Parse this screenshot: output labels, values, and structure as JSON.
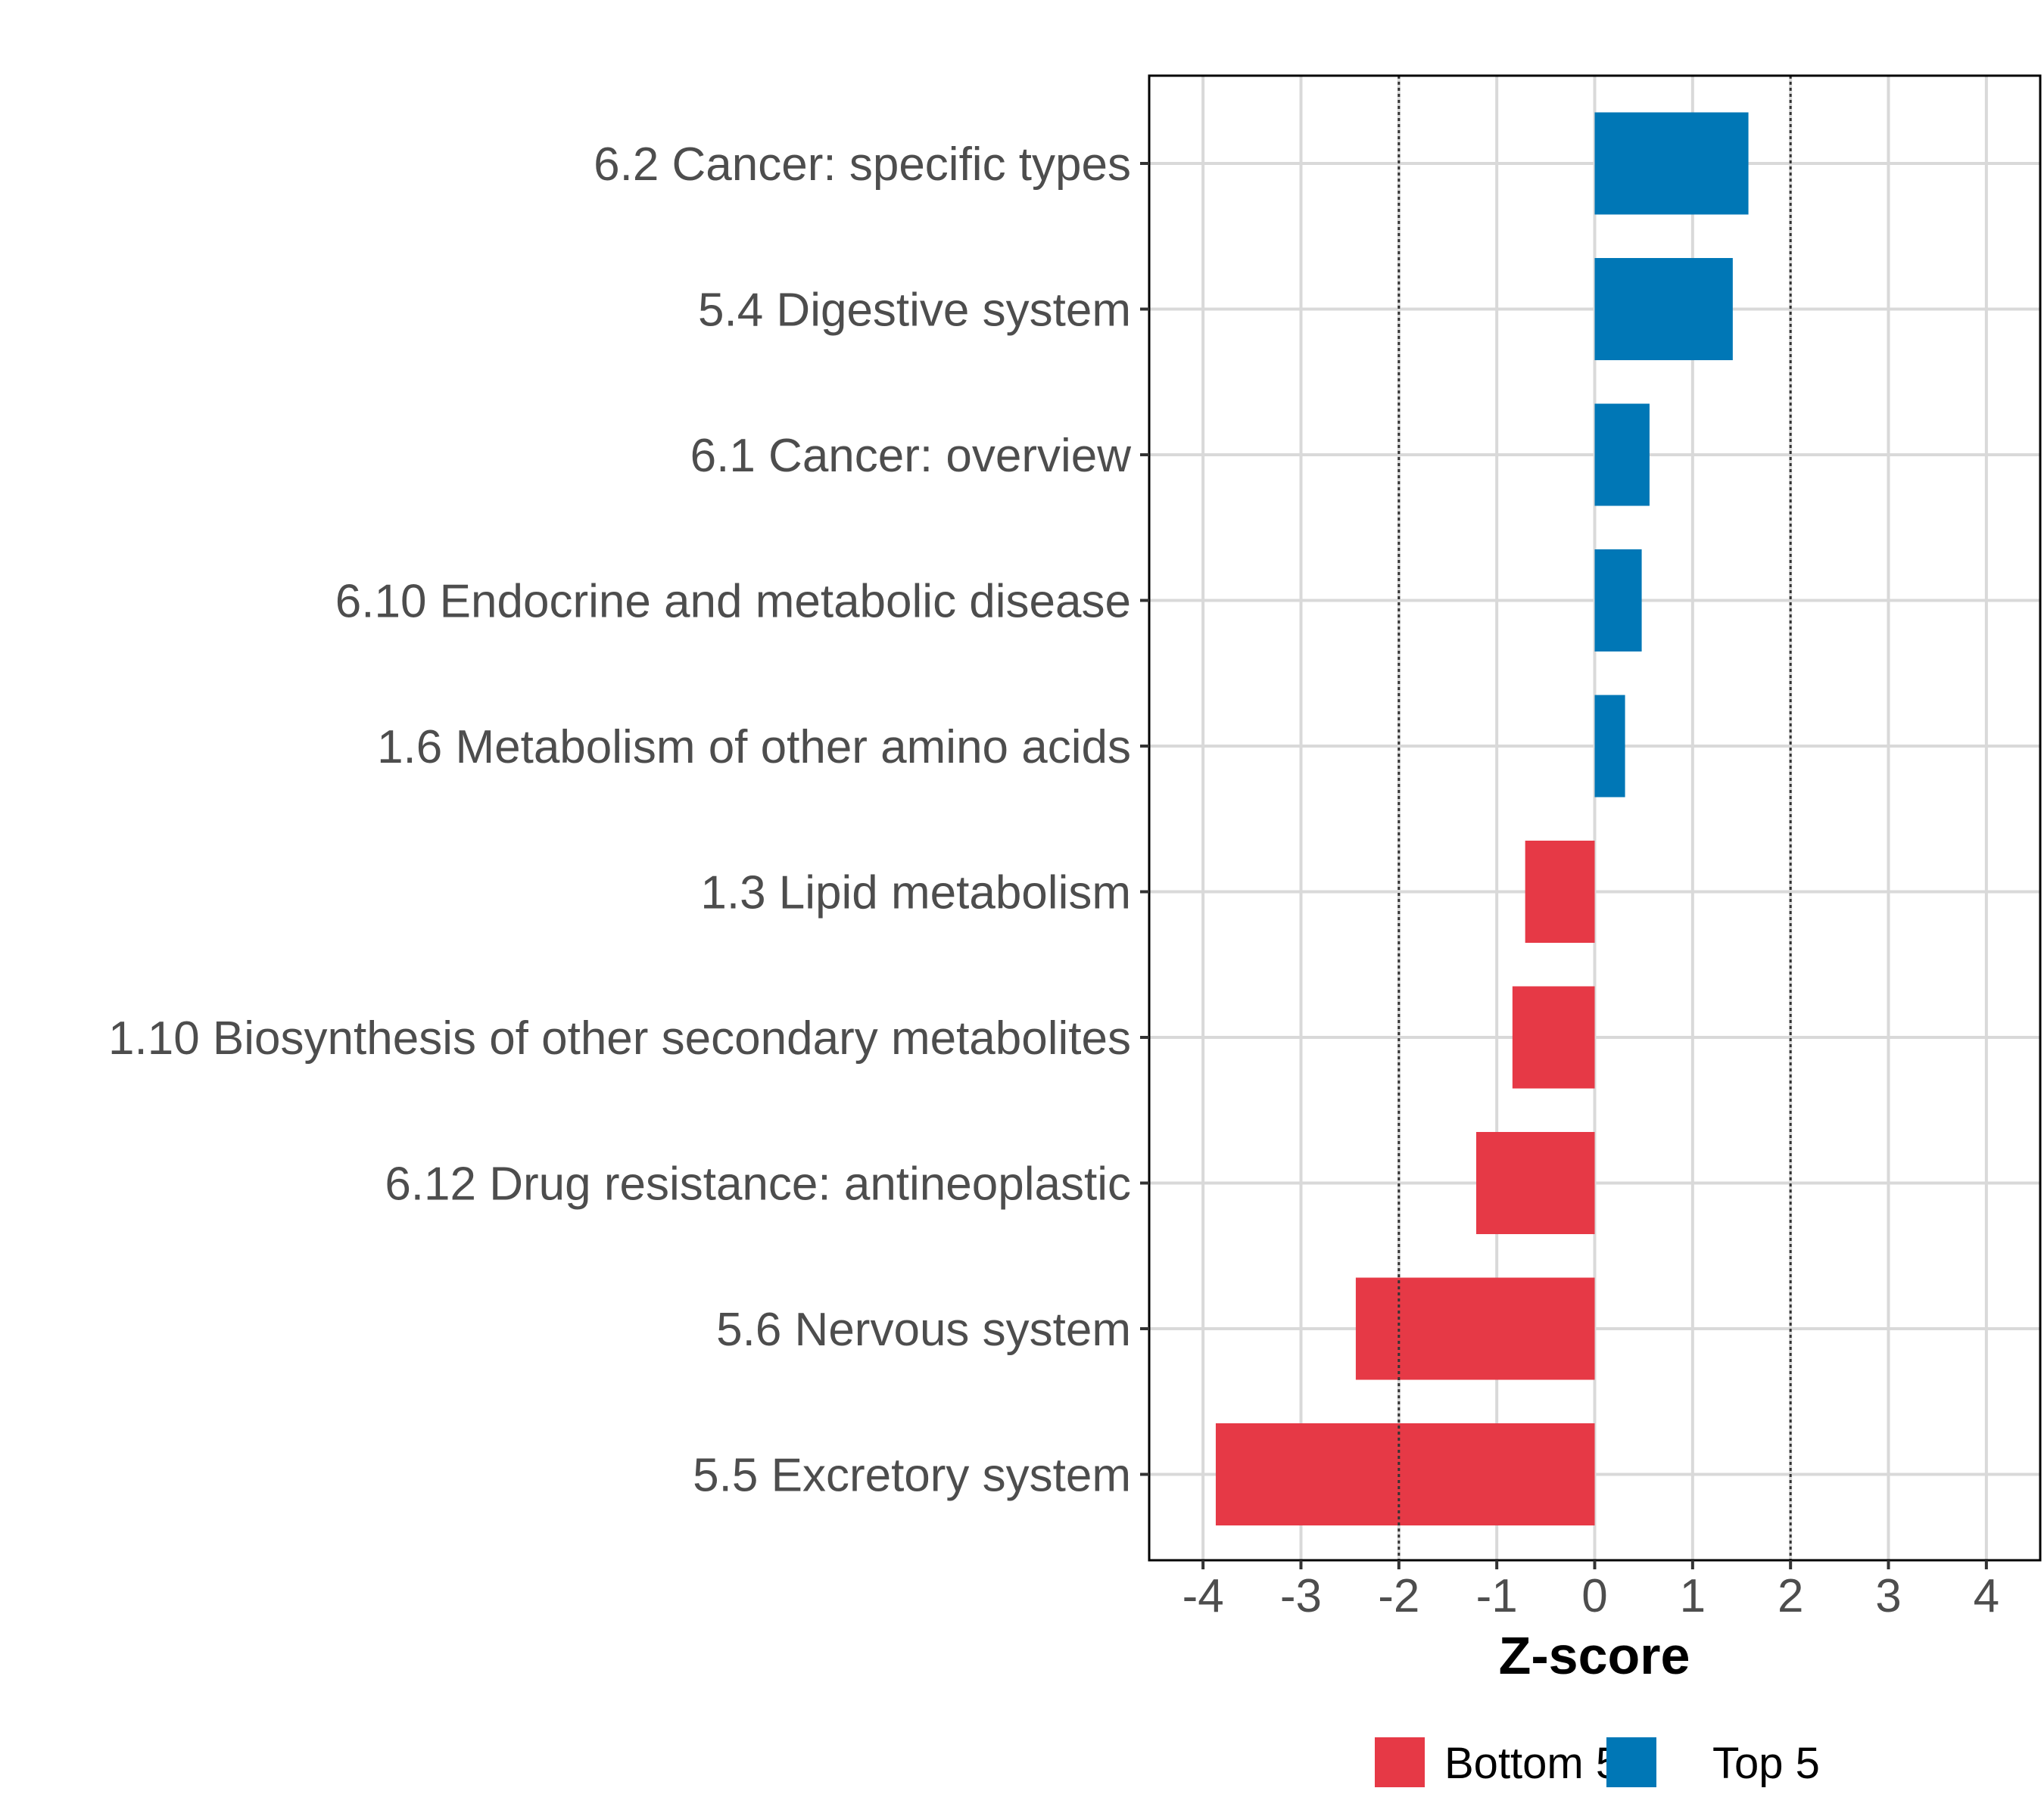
{
  "chart_data": {
    "type": "bar",
    "orientation": "horizontal",
    "title": "",
    "xlabel": "Z-score",
    "ylabel": "",
    "xlim": [
      -4.55,
      4.55
    ],
    "xticks": [
      -4,
      -3,
      -2,
      -1,
      0,
      1,
      2,
      3,
      4
    ],
    "tick_labels": [
      "-4",
      "-3",
      "-2",
      "-1",
      "0",
      "1",
      "2",
      "3",
      "4"
    ],
    "reference_lines": [
      -2,
      2
    ],
    "grid": true,
    "categories": [
      "6.2 Cancer: specific types",
      "5.4 Digestive system",
      "6.1 Cancer: overview",
      "6.10 Endocrine and metabolic disease",
      "1.6 Metabolism of other amino acids",
      "1.3 Lipid metabolism",
      "1.10 Biosynthesis of other secondary metabolites",
      "6.12 Drug resistance: antineoplastic",
      "5.6 Nervous system",
      "5.5 Excretory system"
    ],
    "values": [
      1.57,
      1.41,
      0.56,
      0.48,
      0.31,
      -0.71,
      -0.84,
      -1.21,
      -2.44,
      -3.87
    ],
    "groups": [
      "Top 5",
      "Top 5",
      "Top 5",
      "Top 5",
      "Top 5",
      "Bottom 5",
      "Bottom 5",
      "Bottom 5",
      "Bottom 5",
      "Bottom 5"
    ],
    "legend": {
      "position": "bottom",
      "entries": [
        {
          "label": "Bottom 5",
          "color": "#e63946"
        },
        {
          "label": "Top 5",
          "color": "#0077b6"
        }
      ]
    },
    "colors": {
      "Top 5": "#0077b6",
      "Bottom 5": "#e63946"
    }
  }
}
